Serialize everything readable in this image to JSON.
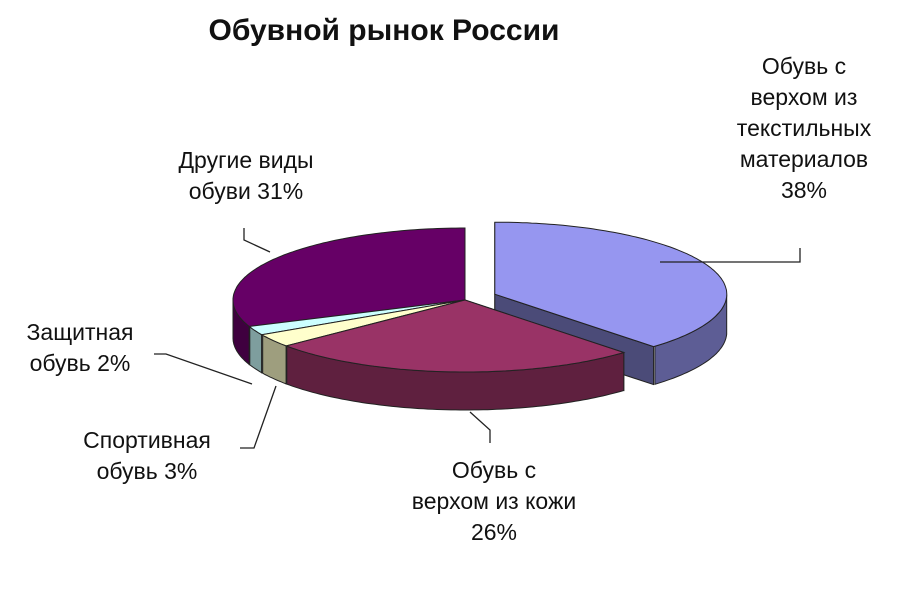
{
  "chart_data": {
    "type": "pie",
    "title": "Обувной рынок России",
    "slices": [
      {
        "name": "Обувь с верхом из текстильных материалов",
        "value": 38,
        "color": "#9696f0",
        "label_lines": [
          "Обувь с",
          "верхом из",
          "текстильных",
          "материалов",
          "38%"
        ]
      },
      {
        "name": "Обувь с верхом из кожи",
        "value": 26,
        "color": "#993366",
        "label_lines": [
          "Обувь с",
          "верхом из кожи",
          "26%"
        ]
      },
      {
        "name": "Спортивная обувь",
        "value": 3,
        "color": "#ffffcc",
        "label_lines": [
          "Спортивная",
          "обувь 3%"
        ]
      },
      {
        "name": "Защитная обувь",
        "value": 2,
        "color": "#ccffff",
        "label_lines": [
          "Защитная",
          "обувь 2%"
        ]
      },
      {
        "name": "Другие виды обуви",
        "value": 31,
        "color": "#660066",
        "label_lines": [
          "Другие виды",
          "обуви 31%"
        ]
      }
    ]
  }
}
